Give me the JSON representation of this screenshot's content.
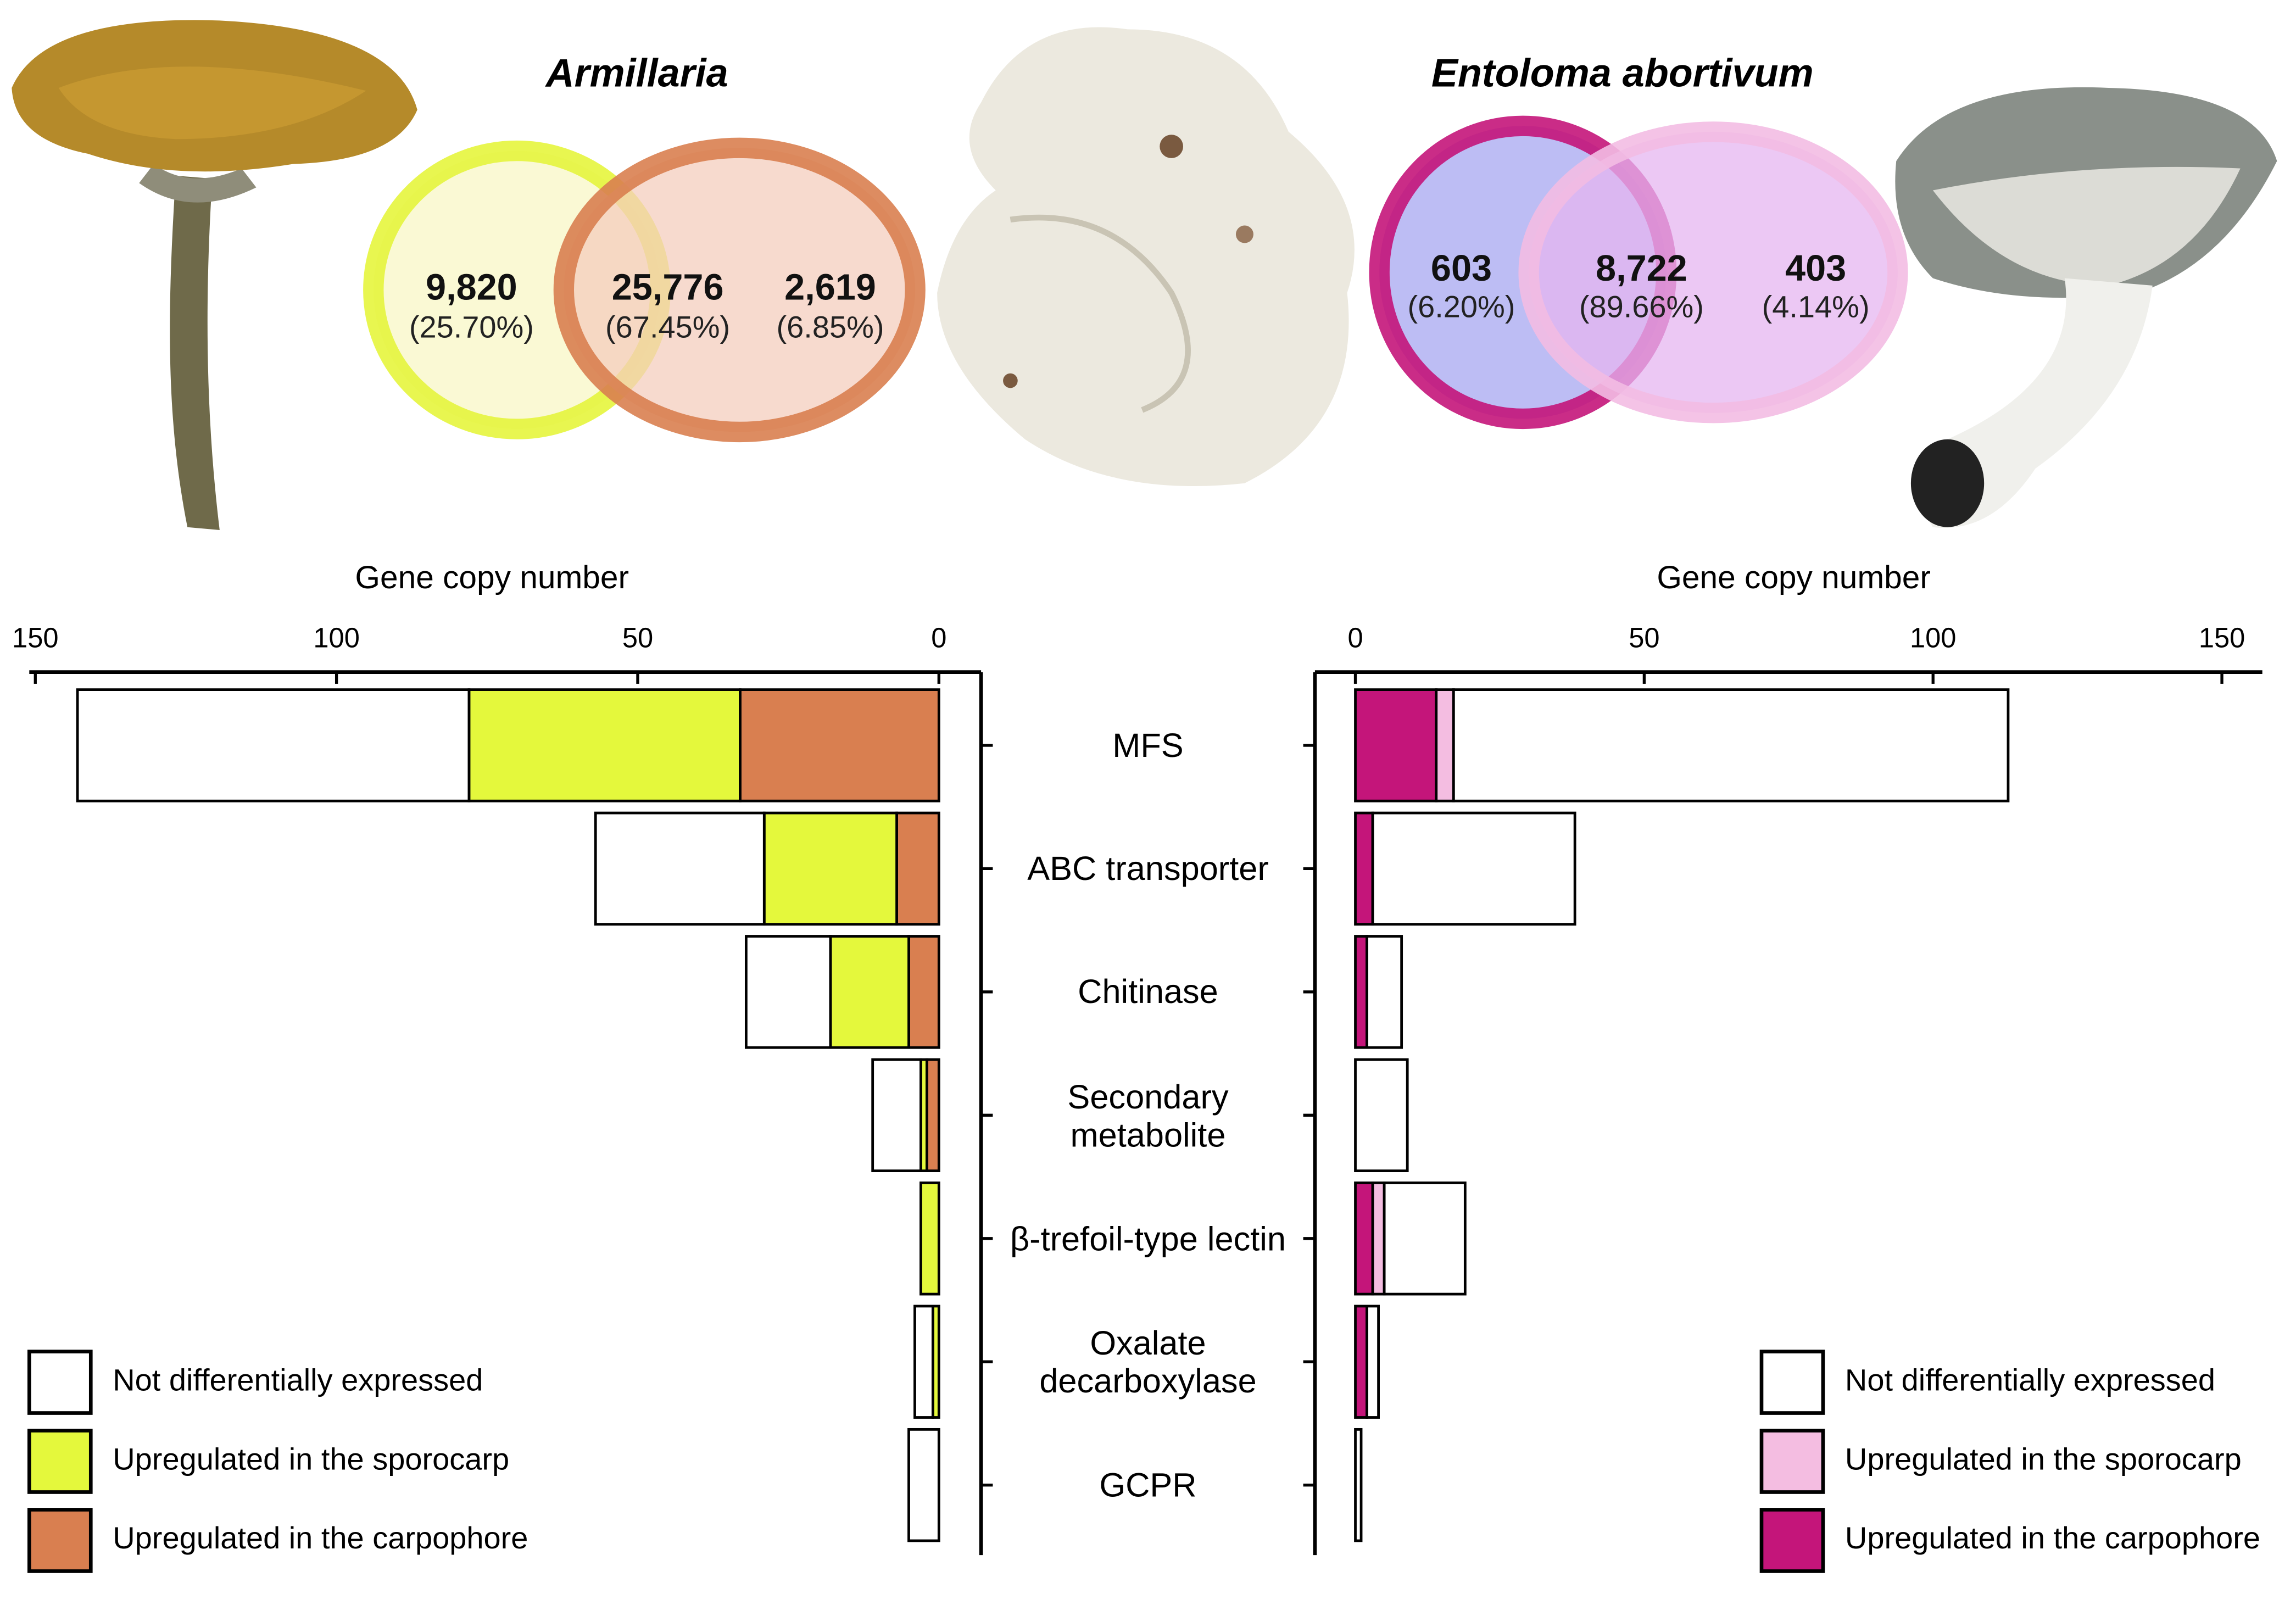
{
  "chart_data": [
    {
      "type": "venn",
      "title": "Armillaria",
      "values": [
        9820,
        25776,
        2619
      ],
      "value_labels": [
        "9,820",
        "25,776",
        "2,619"
      ],
      "percents": [
        25.7,
        67.45,
        6.85
      ],
      "percent_labels": [
        "(25.70%)",
        "(67.45%)",
        "(6.85%)"
      ],
      "colors": [
        "#e6f53d",
        "#d97f50"
      ]
    },
    {
      "type": "venn",
      "title": "Entoloma abortivum",
      "values": [
        603,
        8722,
        403
      ],
      "value_labels": [
        "603",
        "8,722",
        "403"
      ],
      "percents": [
        6.2,
        89.66,
        4.14
      ],
      "percent_labels": [
        "(6.20%)",
        "(89.66%)",
        "(4.14%)"
      ],
      "colors": [
        "#c4157a",
        "#f3bde3"
      ]
    },
    {
      "type": "bar",
      "orientation": "horizontal",
      "stacked": true,
      "x_label": "Gene copy number",
      "xlim": [
        151,
        -7
      ],
      "xticks": [
        150,
        100,
        50,
        0
      ],
      "legend": "lower left",
      "categories": [
        "MFS",
        "ABC transporter",
        "Chitinase",
        "Secondary\nmetabolite",
        "β-trefoil-type lectin",
        "Oxalate\ndecarboxylase",
        "GCPR"
      ],
      "series": [
        {
          "name": "Not differentially expressed",
          "color": "#ffffff",
          "values": [
            65,
            28,
            14,
            8,
            0,
            3,
            5
          ]
        },
        {
          "name": "Upregulated in the sporocarp",
          "color": "#e4f83c",
          "values": [
            45,
            22,
            13,
            1,
            3,
            1,
            0
          ]
        },
        {
          "name": "Upregulated in the carpophore",
          "color": "#d97f50",
          "values": [
            33,
            7,
            5,
            2,
            0,
            0,
            0
          ]
        }
      ]
    },
    {
      "type": "bar",
      "orientation": "horizontal",
      "stacked": true,
      "x_label": "Gene copy number",
      "xlim": [
        -7,
        157
      ],
      "xticks": [
        0,
        50,
        100,
        150
      ],
      "legend": "lower right",
      "series": [
        {
          "name": "Not differentially expressed",
          "color": "#ffffff",
          "values": [
            96,
            35,
            6,
            9,
            14,
            2,
            1
          ]
        },
        {
          "name": "Upregulated in the sporocarp",
          "color": "#f4bde1",
          "values": [
            3,
            0,
            0,
            0,
            2,
            0,
            0
          ]
        },
        {
          "name": "Upregulated in the carpophore",
          "color": "#c4157a",
          "values": [
            14,
            3,
            2,
            0,
            3,
            2,
            0
          ]
        }
      ]
    }
  ]
}
